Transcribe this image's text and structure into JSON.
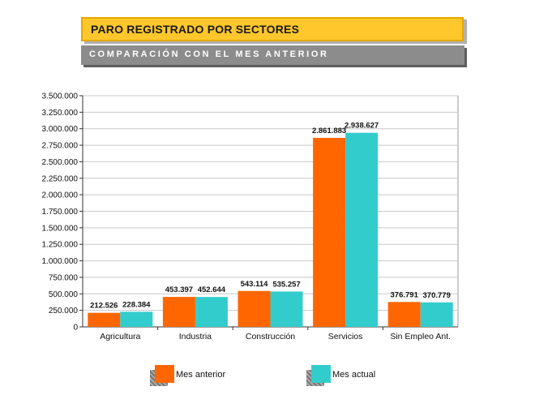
{
  "header": {
    "title": "PARO REGISTRADO POR SECTORES",
    "subtitle": "COMPARACIÓN CON EL MES ANTERIOR"
  },
  "chart_data": {
    "type": "bar",
    "categories": [
      "Agricultura",
      "Industria",
      "Construcción",
      "Servicios",
      "Sin Empleo Ant."
    ],
    "series": [
      {
        "name": "Mes anterior",
        "color": "#ff6600",
        "values": [
          212526,
          453397,
          543114,
          2861883,
          376791
        ],
        "labels": [
          "212.526",
          "453.397",
          "543.114",
          "2.861.883",
          "376.791"
        ]
      },
      {
        "name": "Mes actual",
        "color": "#33cccc",
        "values": [
          228384,
          452644,
          535257,
          2938627,
          370779
        ],
        "labels": [
          "228.384",
          "452.644",
          "535.257",
          "2.938.627",
          "370.779"
        ]
      }
    ],
    "ylim": [
      0,
      3500000
    ],
    "yticks": [
      0,
      250000,
      500000,
      750000,
      1000000,
      1250000,
      1500000,
      1750000,
      2000000,
      2250000,
      2500000,
      2750000,
      3000000,
      3250000,
      3500000
    ],
    "ytick_labels": [
      "0",
      "250.000",
      "500.000",
      "750.000",
      "1.000.000",
      "1.250.000",
      "1.500.000",
      "1.750.000",
      "2.000.000",
      "2.250.000",
      "2.500.000",
      "2.750.000",
      "3.000.000",
      "3.250.000",
      "3.500.000"
    ],
    "grid": true,
    "legend_position": "bottom"
  }
}
